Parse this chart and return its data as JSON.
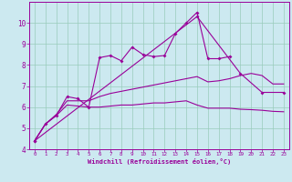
{
  "xlabel": "Windchill (Refroidissement éolien,°C)",
  "xlim": [
    -0.5,
    23.5
  ],
  "ylim": [
    4,
    11
  ],
  "xticks": [
    0,
    1,
    2,
    3,
    4,
    5,
    6,
    7,
    8,
    9,
    10,
    11,
    12,
    13,
    14,
    15,
    16,
    17,
    18,
    19,
    20,
    21,
    22,
    23
  ],
  "yticks": [
    4,
    5,
    6,
    7,
    8,
    9,
    10
  ],
  "bg_color": "#cce9f0",
  "line_color": "#990099",
  "grid_color": "#99ccbb",
  "series_marked": {
    "x": [
      0,
      1,
      2,
      3,
      4,
      5,
      6,
      7,
      8,
      9,
      10,
      11,
      12,
      13,
      14,
      15,
      16,
      17,
      18
    ],
    "y": [
      4.4,
      5.2,
      5.6,
      6.5,
      6.4,
      6.0,
      8.35,
      8.45,
      8.2,
      8.85,
      8.5,
      8.4,
      8.45,
      9.5,
      10.0,
      10.5,
      8.3,
      8.3,
      8.4
    ]
  },
  "series_sparse": {
    "pts": [
      [
        0,
        4.4
      ],
      [
        15,
        10.3
      ],
      [
        19,
        7.6
      ],
      [
        21,
        6.7
      ],
      [
        23,
        6.7
      ]
    ]
  },
  "series_flat": {
    "x": [
      0,
      1,
      2,
      3,
      4,
      5,
      6,
      7,
      8,
      9,
      10,
      11,
      12,
      13,
      14,
      15,
      16,
      17,
      18,
      19,
      20,
      21,
      22,
      23
    ],
    "y": [
      4.4,
      5.2,
      5.6,
      6.1,
      6.05,
      6.0,
      6.0,
      6.05,
      6.1,
      6.1,
      6.15,
      6.2,
      6.2,
      6.25,
      6.3,
      6.1,
      5.95,
      5.95,
      5.95,
      5.9,
      5.88,
      5.85,
      5.8,
      5.78
    ]
  },
  "series_mid": {
    "x": [
      0,
      1,
      2,
      3,
      4,
      5,
      6,
      7,
      8,
      9,
      10,
      11,
      12,
      13,
      14,
      15,
      16,
      17,
      18,
      19,
      20,
      21,
      22,
      23
    ],
    "y": [
      4.4,
      5.2,
      5.65,
      6.3,
      6.3,
      6.3,
      6.5,
      6.65,
      6.75,
      6.85,
      6.95,
      7.05,
      7.15,
      7.25,
      7.35,
      7.45,
      7.2,
      7.25,
      7.35,
      7.5,
      7.6,
      7.5,
      7.1,
      7.1
    ]
  }
}
